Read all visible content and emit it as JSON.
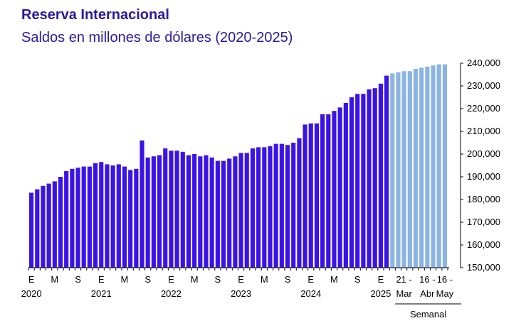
{
  "chart_data": {
    "type": "bar",
    "title": "Reserva Internacional",
    "subtitle": "Saldos en millones de dólares (2020-2025)",
    "ylim": [
      150000,
      240000
    ],
    "y_ticks": [
      "150,000",
      "160,000",
      "170,000",
      "180,000",
      "190,000",
      "200,000",
      "210,000",
      "220,000",
      "230,000",
      "240,000"
    ],
    "grid": false,
    "series": [
      {
        "values": [
          183000,
          184500,
          186000,
          187000,
          188000,
          190000,
          192500,
          193500,
          194000,
          194500,
          194500,
          196000,
          196500,
          195500,
          195000,
          195500,
          194500,
          193000,
          193500,
          206000,
          198500,
          199000,
          199500,
          202500,
          201500,
          201500,
          201000,
          199500,
          200000,
          199000,
          199500,
          198500,
          197000,
          197000,
          198000,
          199000,
          200500,
          200500,
          202500,
          203000,
          203000,
          203500,
          204500,
          204500,
          204000,
          205000,
          207000,
          213000,
          213500,
          213500,
          217500,
          217500,
          219000,
          220500,
          222500,
          225000,
          226500,
          226500,
          228500,
          229000,
          231000,
          234500
        ]
      },
      {
        "values": [
          235500,
          236000,
          236500,
          236500,
          237500,
          238000,
          238500,
          239000,
          239500,
          239500
        ]
      }
    ],
    "colors": {
      "monthly": "#3a14e6",
      "weekly": "#8cb4e2"
    },
    "x_month_labels": [
      "E",
      "M",
      "S",
      "E",
      "M",
      "S",
      "E",
      "M",
      "S",
      "E",
      "M",
      "S",
      "E",
      "M",
      "S",
      "E"
    ],
    "x_year_labels": [
      "2020",
      "2021",
      "2022",
      "2023",
      "2024",
      "2025"
    ],
    "x_week_top": [
      "21 -",
      "16 -",
      "16 -"
    ],
    "x_week_bottom": [
      "Mar",
      "Abr",
      "May"
    ],
    "semanal_label": "Semanal"
  }
}
